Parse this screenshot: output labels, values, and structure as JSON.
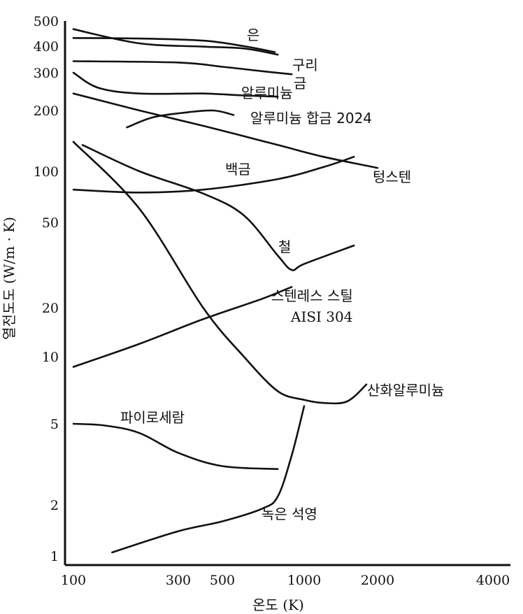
{
  "chart_data": {
    "type": "line",
    "title": "",
    "xlabel": "온도 (K)",
    "ylabel": "열전도도 (W/m · K)",
    "x_scale": "log",
    "y_scale": "log",
    "xlim": [
      100,
      4000
    ],
    "ylim": [
      1,
      500
    ],
    "x_ticks": [
      100,
      300,
      500,
      1000,
      2000,
      4000
    ],
    "y_ticks": [
      1,
      2,
      5,
      10,
      20,
      50,
      100,
      200,
      300,
      400,
      500
    ],
    "x_tick_labels": [
      "100",
      "300",
      "500",
      "1000",
      "2000",
      "4000"
    ],
    "y_tick_labels": [
      "1",
      "2",
      "5",
      "10",
      "20",
      "50",
      "100",
      "200",
      "300",
      "400",
      "500"
    ],
    "grid": false,
    "legend": "none (curves labeled directly)",
    "series": [
      {
        "name": "은",
        "points": [
          [
            100,
            430
          ],
          [
            200,
            428
          ],
          [
            400,
            420
          ],
          [
            600,
            400
          ],
          [
            780,
            375
          ]
        ]
      },
      {
        "name": "구리",
        "points": [
          [
            100,
            465
          ],
          [
            200,
            410
          ],
          [
            400,
            398
          ],
          [
            600,
            390
          ],
          [
            800,
            365
          ]
        ]
      },
      {
        "name": "금",
        "points": [
          [
            100,
            340
          ],
          [
            300,
            335
          ],
          [
            500,
            320
          ],
          [
            700,
            305
          ],
          [
            900,
            295
          ]
        ]
      },
      {
        "name": "알루미늄",
        "points": [
          [
            100,
            300
          ],
          [
            130,
            255
          ],
          [
            200,
            240
          ],
          [
            400,
            240
          ],
          [
            600,
            235
          ],
          [
            800,
            232
          ]
        ]
      },
      {
        "name": "알루미늄 합금 2024",
        "points": [
          [
            175,
            165
          ],
          [
            230,
            185
          ],
          [
            320,
            195
          ],
          [
            450,
            200
          ],
          [
            550,
            190
          ]
        ]
      },
      {
        "name": "텅스텐",
        "points": [
          [
            100,
            240
          ],
          [
            200,
            200
          ],
          [
            400,
            168
          ],
          [
            800,
            135
          ],
          [
            1200,
            118
          ],
          [
            2000,
            104
          ]
        ]
      },
      {
        "name": "백금",
        "points": [
          [
            100,
            78
          ],
          [
            200,
            75
          ],
          [
            400,
            78
          ],
          [
            800,
            90
          ],
          [
            1200,
            105
          ],
          [
            1600,
            118
          ]
        ]
      },
      {
        "name": "철",
        "points": [
          [
            110,
            135
          ],
          [
            200,
            100
          ],
          [
            400,
            74
          ],
          [
            600,
            55
          ],
          [
            800,
            35
          ],
          [
            900,
            30
          ],
          [
            1000,
            32
          ],
          [
            1600,
            39
          ]
        ]
      },
      {
        "name": "스텐레스 스틸 AISI 304",
        "points": [
          [
            100,
            9
          ],
          [
            200,
            12
          ],
          [
            400,
            17
          ],
          [
            700,
            22
          ],
          [
            900,
            25
          ]
        ]
      },
      {
        "name": "산화알루미늄",
        "points": [
          [
            100,
            140
          ],
          [
            200,
            60
          ],
          [
            400,
            20
          ],
          [
            600,
            10
          ],
          [
            800,
            7
          ],
          [
            1000,
            6.4
          ],
          [
            1200,
            6.2
          ],
          [
            1500,
            6.3
          ],
          [
            1800,
            7.5
          ]
        ]
      },
      {
        "name": "파이로세람",
        "points": [
          [
            100,
            5
          ],
          [
            140,
            4.9
          ],
          [
            200,
            4.5
          ],
          [
            300,
            3.6
          ],
          [
            500,
            3.1
          ],
          [
            800,
            3.0
          ]
        ]
      },
      {
        "name": "녹은 석영",
        "points": [
          [
            150,
            1.05
          ],
          [
            300,
            1.4
          ],
          [
            500,
            1.6
          ],
          [
            700,
            1.9
          ],
          [
            800,
            2.2
          ],
          [
            900,
            3.5
          ],
          [
            1000,
            6.0
          ]
        ]
      }
    ]
  }
}
